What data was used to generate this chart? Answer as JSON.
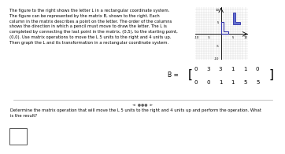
{
  "title_text_lines": [
    "The figure to the right shows the letter L in a rectangular coordinate system.",
    "The figure can be represented by the matrix B, shown to the right. Each",
    "column in the matrix describes a point on the letter. The order of the columns",
    "shows the direction in which a pencil must move to draw the letter. The L is",
    "completed by connecting the last point in the matrix, (0,5), to the starting point,",
    "(0,0). Use matrix operations to move the L 5 units to the right and 4 units up.",
    "Then graph the L and its transformation in a rectangular coordinate system."
  ],
  "matrix_row1": [
    0,
    3,
    3,
    1,
    1,
    0
  ],
  "matrix_row2": [
    0,
    0,
    1,
    1,
    5,
    5
  ],
  "original_L_x": [
    0,
    3,
    3,
    1,
    1,
    0,
    0
  ],
  "original_L_y": [
    0,
    0,
    1,
    1,
    5,
    5,
    0
  ],
  "transformed_L_x": [
    5,
    8,
    8,
    6,
    6,
    5,
    5
  ],
  "transformed_L_y": [
    4,
    4,
    5,
    5,
    9,
    9,
    4
  ],
  "original_color": "#3333aa",
  "transformed_fill": "#5566cc",
  "transformed_edge": "#3333aa",
  "grid_xlim": [
    -10.5,
    11.0
  ],
  "grid_ylim": [
    -10.5,
    11.0
  ],
  "grid_xticks": [
    -10,
    -5,
    5,
    10
  ],
  "grid_yticks": [
    -10,
    -5,
    5,
    10
  ],
  "question_text_lines": [
    "Determine the matrix operation that will move the L 5 units to the right and 4 units up and perform the operation. What",
    "is the result?"
  ],
  "bg_color": "#ffffff",
  "text_color": "#000000",
  "grid_color": "#cccccc",
  "grid_bg": "#eeeeee"
}
